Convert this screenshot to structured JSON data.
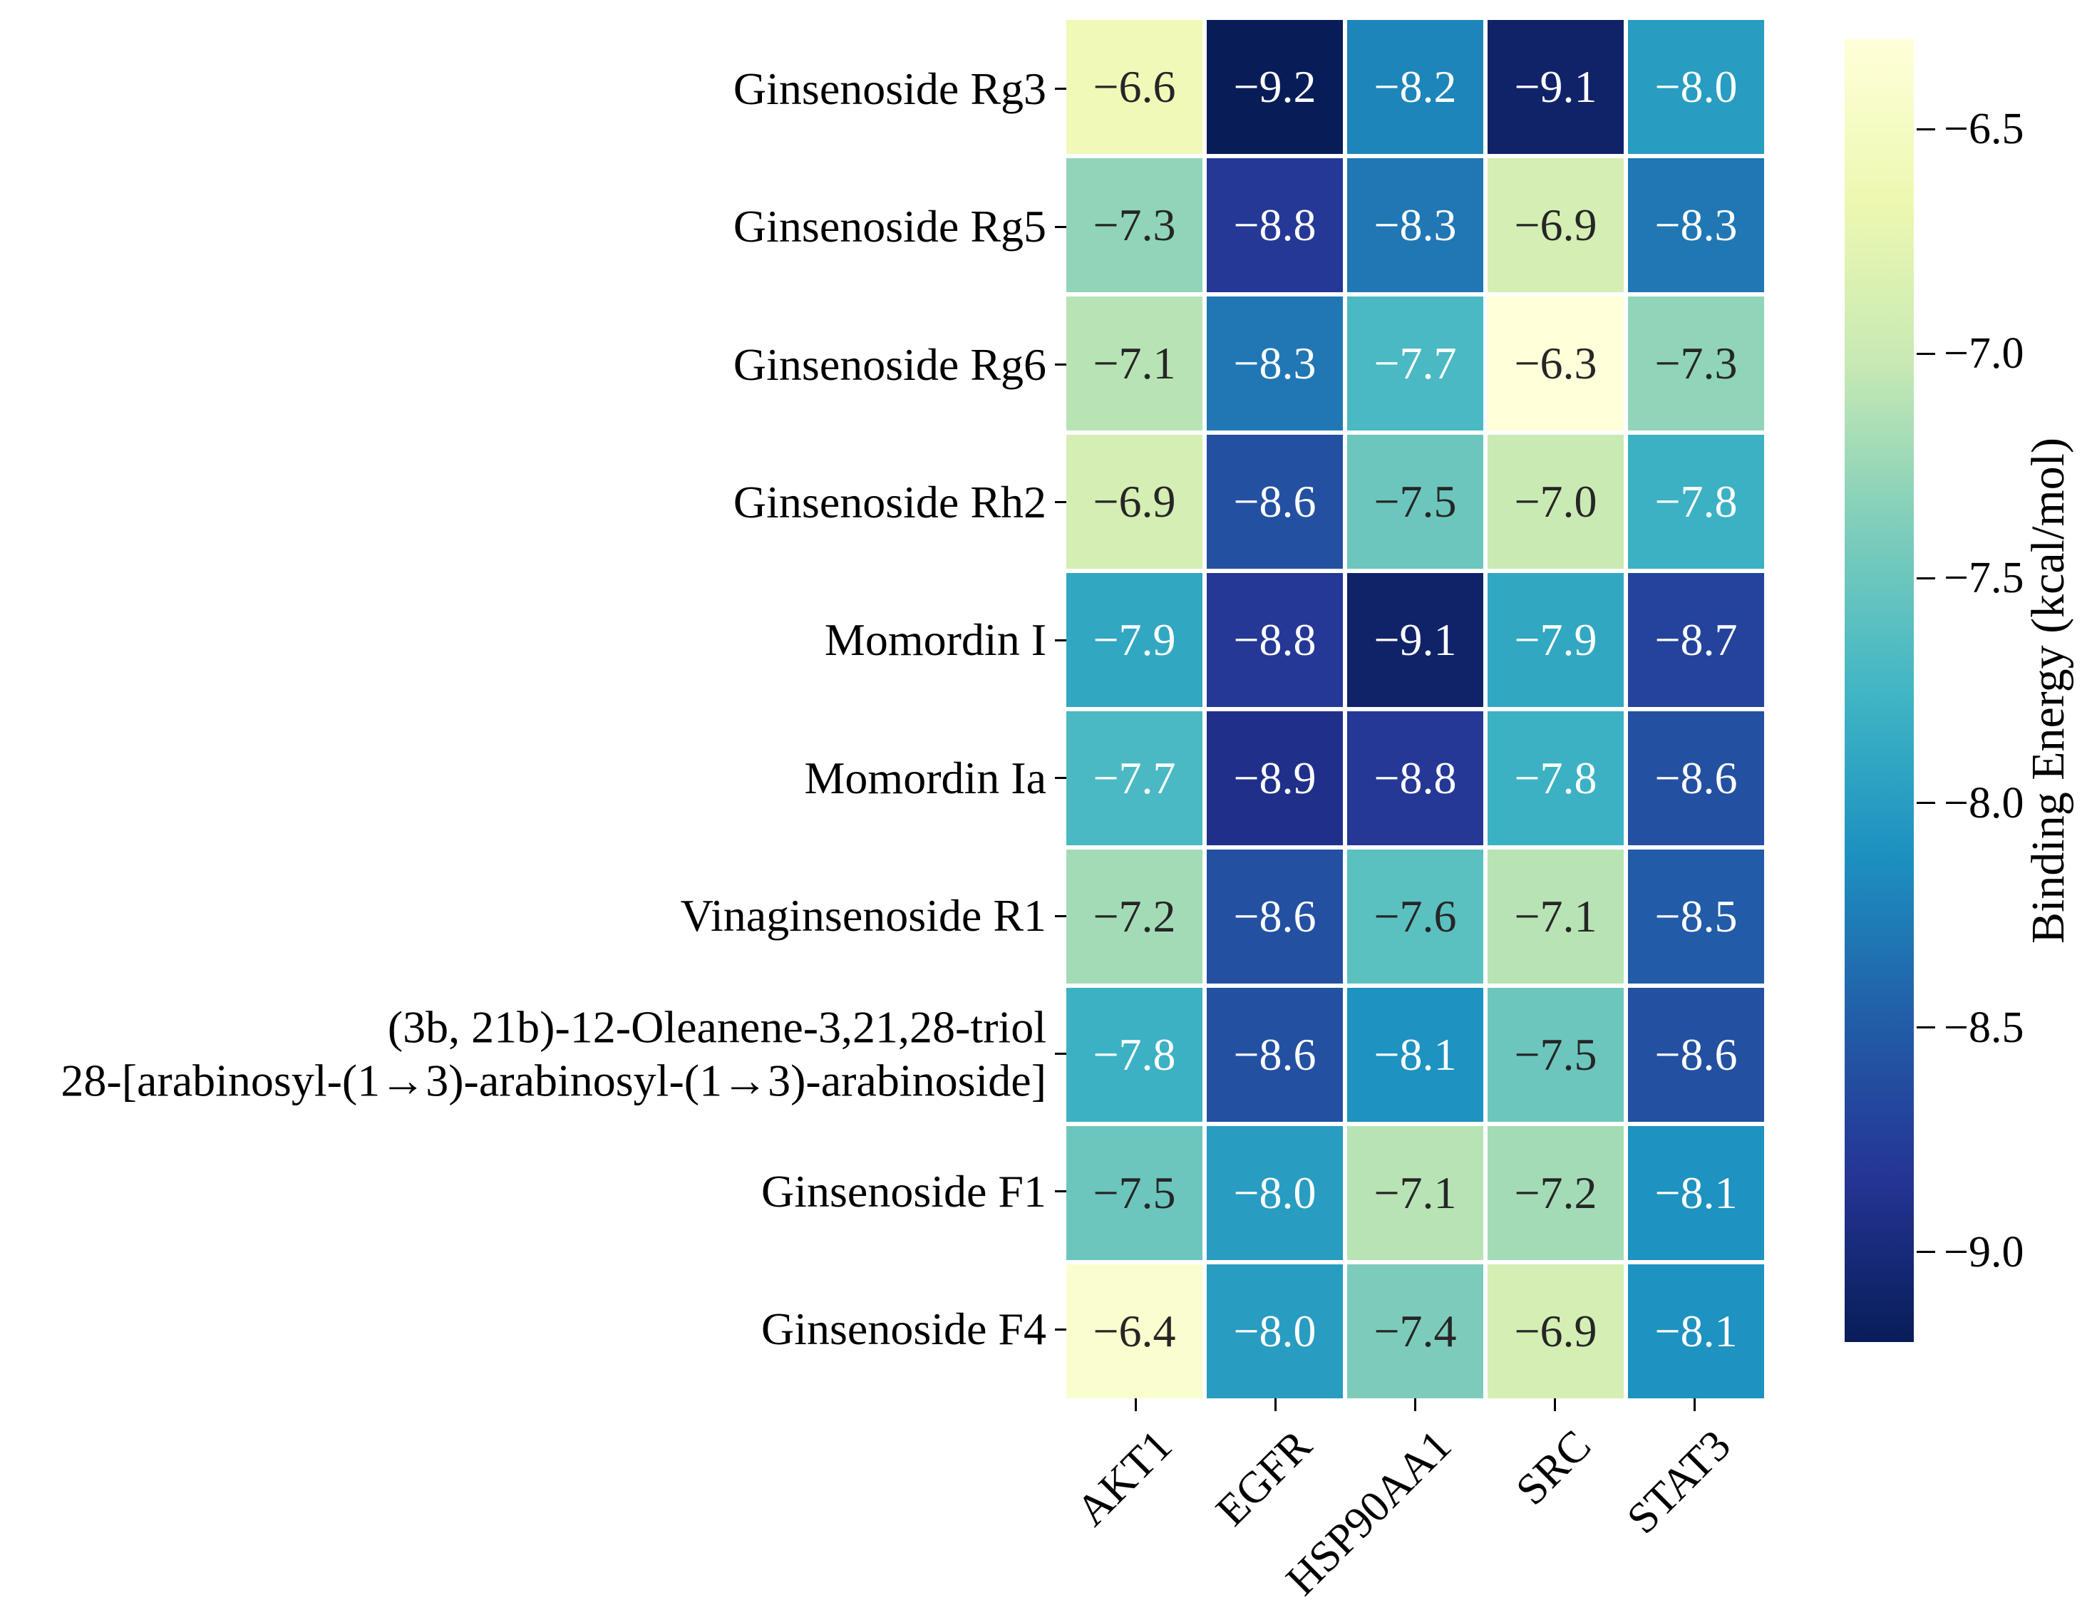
{
  "figure": {
    "background_color": "#ffffff",
    "text_color": "#000000"
  },
  "chart_data": {
    "type": "heatmap",
    "title": "",
    "xlabel": "",
    "ylabel": "",
    "x_categories": [
      "AKT1",
      "EGFR",
      "HSP90AA1",
      "SRC",
      "STAT3"
    ],
    "y_categories": [
      "Ginsenoside Rg3",
      "Ginsenoside Rg5",
      "Ginsenoside Rg6",
      "Ginsenoside Rh2",
      "Momordin I",
      "Momordin Ia",
      "Vinaginsenoside R1",
      "(3b, 21b)-12-Oleanene-3,21,28-triol\n28-[arabinosyl-(1→3)-arabinosyl-(1→3)-arabinoside]",
      "Ginsenoside F1",
      "Ginsenoside F4"
    ],
    "values": [
      [
        -6.6,
        -9.2,
        -8.2,
        -9.1,
        -8.0
      ],
      [
        -7.3,
        -8.8,
        -8.3,
        -6.9,
        -8.3
      ],
      [
        -7.1,
        -8.3,
        -7.7,
        -6.3,
        -7.3
      ],
      [
        -6.9,
        -8.6,
        -7.5,
        -7.0,
        -7.8
      ],
      [
        -7.9,
        -8.8,
        -9.1,
        -7.9,
        -8.7
      ],
      [
        -7.7,
        -8.9,
        -8.8,
        -7.8,
        -8.6
      ],
      [
        -7.2,
        -8.6,
        -7.6,
        -7.1,
        -8.5
      ],
      [
        -7.8,
        -8.6,
        -8.1,
        -7.5,
        -8.6
      ],
      [
        -7.5,
        -8.0,
        -7.1,
        -7.2,
        -8.1
      ],
      [
        -6.4,
        -8.0,
        -7.4,
        -6.9,
        -8.1
      ]
    ],
    "value_decimals": 1,
    "grid_line_color": "#ffffff",
    "annotation": {
      "light_text": "#ffffff",
      "dark_text": "#262626",
      "luminance_threshold": 0.408
    },
    "colorbar": {
      "label": "Binding Energy (kcal/mol)",
      "ticks": [
        -6.5,
        -7.0,
        -7.5,
        -8.0,
        -8.5,
        -9.0
      ],
      "tick_labels": [
        "−6.5",
        "−7.0",
        "−7.5",
        "−8.0",
        "−8.5",
        "−9.0"
      ],
      "vmax": -6.3,
      "vmin": -9.2,
      "colormap": "YlGnBu",
      "gradient_stops": [
        "#ffffd9",
        "#edf8b1",
        "#c7e9b4",
        "#7fcdbb",
        "#41b6c4",
        "#1d91c0",
        "#225ea8",
        "#253494",
        "#081d58"
      ],
      "legend_position": "right"
    }
  }
}
